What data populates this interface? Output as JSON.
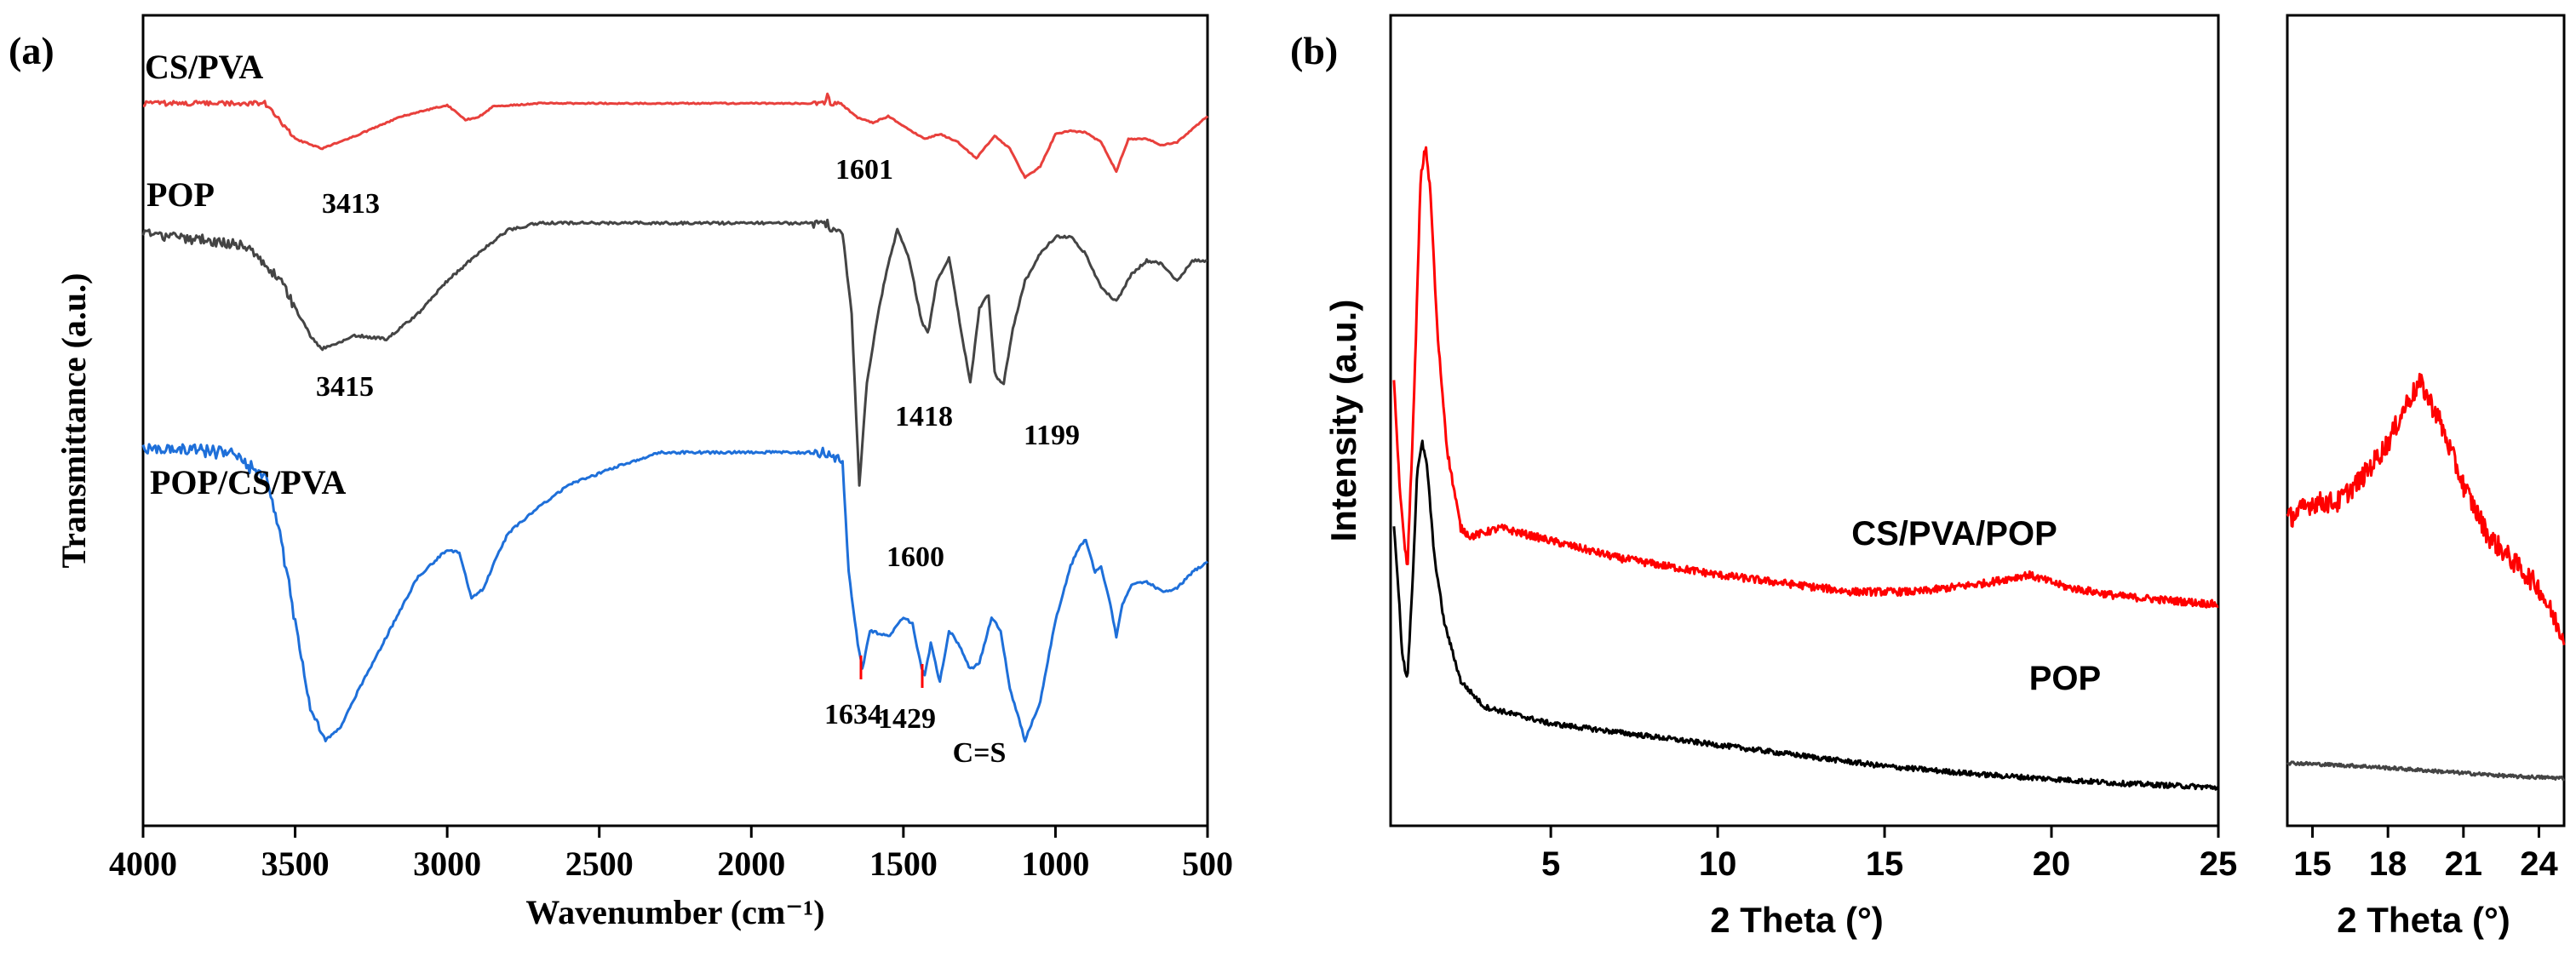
{
  "chart_data": [
    {
      "panel": "(a)",
      "type": "line",
      "xlabel": "Wavenumber (cm⁻¹)",
      "ylabel": "Transmittance (a.u.)",
      "xlim": [
        4000,
        500
      ],
      "xticks": [
        4000,
        3500,
        3000,
        2500,
        2000,
        1500,
        1000,
        500
      ],
      "series": [
        {
          "name": "CS/PVA",
          "color": "#e8403c",
          "points": [
            [
              4000,
              0.94
            ],
            [
              3700,
              0.94
            ],
            [
              3600,
              0.94
            ],
            [
              3500,
              0.72
            ],
            [
              3413,
              0.66
            ],
            [
              3300,
              0.74
            ],
            [
              3150,
              0.86
            ],
            [
              3000,
              0.93
            ],
            [
              2940,
              0.84
            ],
            [
              2900,
              0.85
            ],
            [
              2850,
              0.92
            ],
            [
              2700,
              0.94
            ],
            [
              2000,
              0.94
            ],
            [
              1760,
              0.94
            ],
            [
              1750,
              0.99
            ],
            [
              1740,
              0.94
            ],
            [
              1700,
              0.93
            ],
            [
              1650,
              0.85
            ],
            [
              1601,
              0.82
            ],
            [
              1550,
              0.86
            ],
            [
              1500,
              0.8
            ],
            [
              1430,
              0.72
            ],
            [
              1380,
              0.75
            ],
            [
              1320,
              0.7
            ],
            [
              1260,
              0.6
            ],
            [
              1200,
              0.74
            ],
            [
              1150,
              0.66
            ],
            [
              1100,
              0.48
            ],
            [
              1050,
              0.55
            ],
            [
              1000,
              0.75
            ],
            [
              950,
              0.77
            ],
            [
              900,
              0.76
            ],
            [
              850,
              0.7
            ],
            [
              800,
              0.52
            ],
            [
              760,
              0.72
            ],
            [
              700,
              0.72
            ],
            [
              650,
              0.68
            ],
            [
              600,
              0.7
            ],
            [
              500,
              0.86
            ]
          ]
        },
        {
          "name": "POP",
          "color": "#444444",
          "points": [
            [
              4000,
              0.94
            ],
            [
              3800,
              0.92
            ],
            [
              3650,
              0.9
            ],
            [
              3550,
              0.8
            ],
            [
              3450,
              0.64
            ],
            [
              3415,
              0.6
            ],
            [
              3300,
              0.64
            ],
            [
              3200,
              0.63
            ],
            [
              3100,
              0.7
            ],
            [
              3000,
              0.8
            ],
            [
              2900,
              0.88
            ],
            [
              2800,
              0.95
            ],
            [
              2700,
              0.97
            ],
            [
              2000,
              0.97
            ],
            [
              1760,
              0.97
            ],
            [
              1700,
              0.94
            ],
            [
              1670,
              0.7
            ],
            [
              1645,
              0.2
            ],
            [
              1620,
              0.5
            ],
            [
              1580,
              0.72
            ],
            [
              1550,
              0.85
            ],
            [
              1520,
              0.95
            ],
            [
              1480,
              0.86
            ],
            [
              1440,
              0.68
            ],
            [
              1418,
              0.65
            ],
            [
              1390,
              0.8
            ],
            [
              1350,
              0.87
            ],
            [
              1300,
              0.6
            ],
            [
              1280,
              0.5
            ],
            [
              1250,
              0.72
            ],
            [
              1220,
              0.76
            ],
            [
              1199,
              0.52
            ],
            [
              1170,
              0.5
            ],
            [
              1140,
              0.66
            ],
            [
              1100,
              0.8
            ],
            [
              1050,
              0.88
            ],
            [
              1000,
              0.93
            ],
            [
              950,
              0.93
            ],
            [
              900,
              0.88
            ],
            [
              850,
              0.78
            ],
            [
              800,
              0.74
            ],
            [
              750,
              0.82
            ],
            [
              700,
              0.86
            ],
            [
              650,
              0.85
            ],
            [
              600,
              0.8
            ],
            [
              550,
              0.86
            ],
            [
              500,
              0.86
            ]
          ]
        },
        {
          "name": "POP/CS/PVA",
          "color": "#1e6fd9",
          "points": [
            [
              4000,
              0.98
            ],
            [
              3800,
              0.98
            ],
            [
              3700,
              0.96
            ],
            [
              3600,
              0.9
            ],
            [
              3550,
              0.72
            ],
            [
              3500,
              0.45
            ],
            [
              3450,
              0.18
            ],
            [
              3400,
              0.08
            ],
            [
              3350,
              0.12
            ],
            [
              3300,
              0.22
            ],
            [
              3200,
              0.4
            ],
            [
              3100,
              0.58
            ],
            [
              3000,
              0.67
            ],
            [
              2960,
              0.66
            ],
            [
              2920,
              0.52
            ],
            [
              2880,
              0.55
            ],
            [
              2850,
              0.62
            ],
            [
              2800,
              0.72
            ],
            [
              2700,
              0.8
            ],
            [
              2600,
              0.87
            ],
            [
              2400,
              0.94
            ],
            [
              2300,
              0.97
            ],
            [
              2000,
              0.97
            ],
            [
              1760,
              0.97
            ],
            [
              1700,
              0.94
            ],
            [
              1680,
              0.6
            ],
            [
              1650,
              0.38
            ],
            [
              1634,
              0.3
            ],
            [
              1610,
              0.42
            ],
            [
              1550,
              0.4
            ],
            [
              1500,
              0.46
            ],
            [
              1470,
              0.44
            ],
            [
              1440,
              0.3
            ],
            [
              1429,
              0.28
            ],
            [
              1410,
              0.38
            ],
            [
              1380,
              0.26
            ],
            [
              1350,
              0.42
            ],
            [
              1320,
              0.38
            ],
            [
              1280,
              0.3
            ],
            [
              1250,
              0.32
            ],
            [
              1210,
              0.46
            ],
            [
              1180,
              0.42
            ],
            [
              1150,
              0.24
            ],
            [
              1100,
              0.08
            ],
            [
              1050,
              0.2
            ],
            [
              1000,
              0.45
            ],
            [
              950,
              0.62
            ],
            [
              920,
              0.68
            ],
            [
              900,
              0.7
            ],
            [
              870,
              0.6
            ],
            [
              850,
              0.62
            ],
            [
              820,
              0.5
            ],
            [
              800,
              0.4
            ],
            [
              780,
              0.5
            ],
            [
              750,
              0.56
            ],
            [
              700,
              0.57
            ],
            [
              650,
              0.54
            ],
            [
              600,
              0.55
            ],
            [
              550,
              0.6
            ],
            [
              500,
              0.63
            ]
          ]
        }
      ],
      "series_labels": [
        "CS/PVA",
        "POP",
        "POP/CS/PVA"
      ],
      "annotations": [
        {
          "text": "3413",
          "x": 3413,
          "series": "CS/PVA"
        },
        {
          "text": "1601",
          "x": 1601,
          "series": "CS/PVA"
        },
        {
          "text": "3415",
          "x": 3415,
          "series": "POP"
        },
        {
          "text": "1418",
          "x": 1418,
          "series": "POP"
        },
        {
          "text": "1199",
          "x": 1199,
          "series": "POP"
        },
        {
          "text": "1600",
          "x": 1600,
          "series": "POP"
        },
        {
          "text": "1634",
          "x": 1634,
          "series": "POP/CS/PVA"
        },
        {
          "text": "1429",
          "x": 1429,
          "series": "POP/CS/PVA"
        },
        {
          "text": "C=S",
          "x": 1100,
          "series": "POP/CS/PVA"
        }
      ]
    },
    {
      "panel": "(b)",
      "type": "line",
      "xlabel": "2 Theta (°)",
      "ylabel": "Intensity (a.u.)",
      "xlim": [
        0.2,
        25
      ],
      "xticks": [
        5,
        10,
        15,
        20,
        25
      ],
      "series": [
        {
          "name": "CS/PVA/POP",
          "color": "#ff0000",
          "points": [
            [
              0.3,
              0.52
            ],
            [
              0.5,
              0.38
            ],
            [
              0.7,
              0.3
            ],
            [
              0.9,
              0.5
            ],
            [
              1.1,
              0.76
            ],
            [
              1.25,
              0.8
            ],
            [
              1.4,
              0.74
            ],
            [
              1.6,
              0.58
            ],
            [
              1.9,
              0.44
            ],
            [
              2.3,
              0.35
            ],
            [
              2.6,
              0.34
            ],
            [
              3.5,
              0.35
            ],
            [
              5,
              0.335
            ],
            [
              7,
              0.315
            ],
            [
              10,
              0.295
            ],
            [
              12,
              0.285
            ],
            [
              14,
              0.275
            ],
            [
              16,
              0.275
            ],
            [
              18,
              0.285
            ],
            [
              19.3,
              0.295
            ],
            [
              20.5,
              0.28
            ],
            [
              22,
              0.27
            ],
            [
              25,
              0.26
            ]
          ]
        },
        {
          "name": "POP",
          "color": "#000000",
          "points": [
            [
              0.3,
              0.35
            ],
            [
              0.4,
              0.3
            ],
            [
              0.55,
              0.2
            ],
            [
              0.7,
              0.17
            ],
            [
              0.85,
              0.28
            ],
            [
              1.0,
              0.42
            ],
            [
              1.15,
              0.45
            ],
            [
              1.3,
              0.42
            ],
            [
              1.5,
              0.32
            ],
            [
              1.8,
              0.24
            ],
            [
              2.3,
              0.17
            ],
            [
              3,
              0.14
            ],
            [
              5,
              0.12
            ],
            [
              8,
              0.105
            ],
            [
              10,
              0.095
            ],
            [
              12,
              0.085
            ],
            [
              15,
              0.07
            ],
            [
              18,
              0.06
            ],
            [
              20,
              0.055
            ],
            [
              22,
              0.05
            ],
            [
              25,
              0.045
            ]
          ]
        }
      ],
      "series_labels": [
        "CS/PVA/POP",
        "POP"
      ]
    },
    {
      "panel": "(b) zoom",
      "type": "line",
      "xlabel": "2 Theta (°)",
      "xlim": [
        14,
        25
      ],
      "xticks": [
        15,
        18,
        21,
        24
      ],
      "series": [
        {
          "name": "CS/PVA/POP",
          "color": "#ff0000",
          "points": [
            [
              14,
              0.36
            ],
            [
              15,
              0.38
            ],
            [
              16,
              0.38
            ],
            [
              17,
              0.41
            ],
            [
              18,
              0.45
            ],
            [
              18.8,
              0.5
            ],
            [
              19.3,
              0.52
            ],
            [
              20,
              0.48
            ],
            [
              21,
              0.4
            ],
            [
              22,
              0.34
            ],
            [
              23,
              0.31
            ],
            [
              24,
              0.28
            ],
            [
              25,
              0.22
            ]
          ]
        },
        {
          "name": "POP",
          "color": "#444444",
          "points": [
            [
              14,
              0.074
            ],
            [
              17,
              0.07
            ],
            [
              20,
              0.064
            ],
            [
              23,
              0.058
            ],
            [
              25,
              0.056
            ]
          ]
        }
      ]
    }
  ]
}
